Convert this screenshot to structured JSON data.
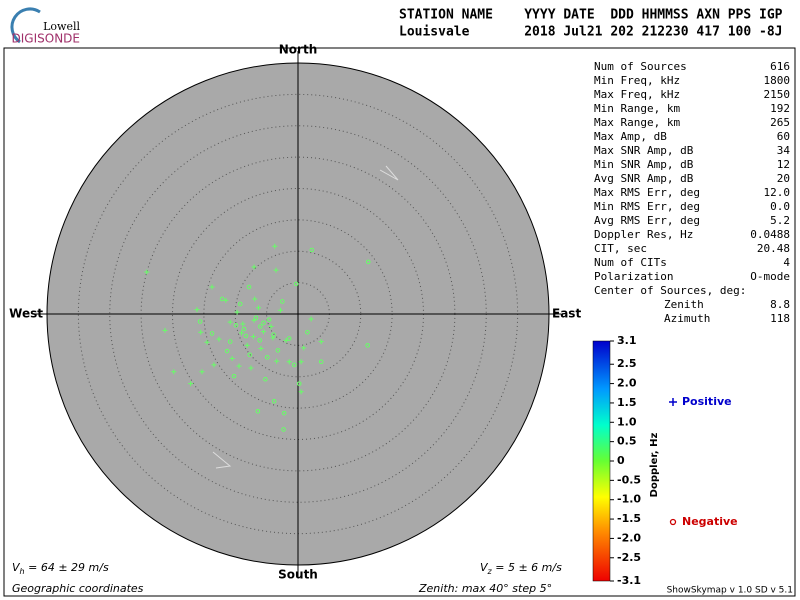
{
  "logo": {
    "top": "Lowell",
    "bottom": "DIGISONDE"
  },
  "header": {
    "line1": "STATION NAME    YYYY DATE  DDD HHMMSS AXN PPS IGP",
    "line2": "Louisvale       2018 Jul21 202 212230 417 100 -8J"
  },
  "stats": {
    "rows": [
      [
        "Num of Sources",
        "616"
      ],
      [
        "Min Freq, kHz",
        "1800"
      ],
      [
        "Max Freq, kHz",
        "2150"
      ],
      [
        "Min Range, km",
        "192"
      ],
      [
        "Max Range, km",
        "265"
      ],
      [
        "Max Amp, dB",
        "60"
      ],
      [
        "Max SNR Amp, dB",
        "34"
      ],
      [
        "Min SNR Amp, dB",
        "12"
      ],
      [
        "Avg SNR Amp, dB",
        "20"
      ],
      [
        "Max RMS Err, deg",
        "12.0"
      ],
      [
        "Min RMS Err, deg",
        "0.0"
      ],
      [
        "Avg RMS Err, deg",
        "5.2"
      ],
      [
        "Doppler Res, Hz",
        "0.0488"
      ],
      [
        "CIT, sec",
        "20.48"
      ],
      [
        "Num of CITs",
        "4"
      ],
      [
        "Polarization",
        "O-mode"
      ]
    ],
    "center": {
      "title": "Center of Sources, deg:",
      "rows": [
        [
          "Zenith",
          "8.8"
        ],
        [
          "Azimuth",
          "118"
        ]
      ]
    }
  },
  "footer": {
    "vh": {
      "symbol": "V",
      "subscript": "h",
      "text": " = 64 ± 29 m/s"
    },
    "vz": {
      "symbol": "V",
      "subscript": "z",
      "text": " = 5 ± 6 m/s"
    },
    "coords": "Geographic coordinates",
    "zenith": "Zenith: max 40°  step 5°",
    "version": "ShowSkymap v 1.0  SD v 5.1"
  },
  "chart_data": {
    "type": "polar-scatter",
    "directions": {
      "north": "North",
      "south": "South",
      "east": "East",
      "west": "West"
    },
    "rlim": [
      0,
      40
    ],
    "rticks": [
      5,
      10,
      15,
      20,
      25,
      30,
      35,
      40
    ],
    "series": [
      {
        "name": "Positive",
        "marker": "plus",
        "color": "#66ff66",
        "legend_color": "#0000cc",
        "x": [
          -24.1,
          -3.7,
          -7,
          -3.5,
          -13.7,
          -21.2,
          -15.5,
          -19.8,
          -15.3,
          -13.4,
          -9.4,
          -3.4,
          -1.4,
          0.5,
          -7.1,
          -8.8,
          -10.8,
          -12.6,
          -5.9,
          -4.3,
          -2.8,
          -6.3,
          -9.7,
          -11.5,
          -14.5,
          -16.1,
          -17.1,
          -6.9,
          0.9,
          2.1,
          3.7,
          -1.9,
          -8.1,
          -7.5,
          -10.5,
          0.5,
          -5.5,
          -9.0,
          -7.0,
          -4.0
        ],
        "y": [
          6.7,
          10.8,
          7.5,
          7,
          4.3,
          -2.6,
          -2.9,
          -9.2,
          -9.2,
          -8.1,
          -8.3,
          -7.5,
          -7.6,
          -7.6,
          -3.6,
          -1.6,
          -1.3,
          -4.0,
          -5.5,
          -2.0,
          0.6,
          1.0,
          0.3,
          2.2,
          -4.5,
          0.7,
          -11.1,
          2.4,
          -5.4,
          -0.8,
          -4.4,
          -4.2,
          -5.0,
          -8.6,
          -7.1,
          -12.4,
          -2.8,
          -3.0,
          -1.0,
          -3.8
        ]
      },
      {
        "name": "Negative",
        "marker": "circle",
        "color": "#66ff66",
        "legend_color": "#cc0000",
        "x": [
          2.2,
          11.2,
          -12.1,
          -9.2,
          -6.7,
          -8.3,
          -11.3,
          -6.1,
          -3.9,
          -1.4,
          1.5,
          -0.6,
          -5.2,
          -2.2,
          -2.3,
          -6.4,
          -3.8,
          0.2,
          3.7,
          11.1,
          -13.7,
          -15.6,
          -10.2,
          -7.7,
          -4.6,
          -2.5,
          -0.3,
          -7.8,
          -9.9,
          -4.9,
          -8.6,
          -6.0,
          -10.8,
          -5.5,
          -3.2
        ],
        "y": [
          10.2,
          8.3,
          2.4,
          1.6,
          -0.6,
          -3.5,
          -5.9,
          -4.2,
          -3.3,
          -3.9,
          -2.9,
          -8.1,
          -10.4,
          -15.8,
          -18.4,
          -15.5,
          -13.9,
          -11.1,
          -7.6,
          -5.0,
          -3.1,
          -1.2,
          -9.9,
          -6.5,
          -0.9,
          2.0,
          4.8,
          4.3,
          -1.8,
          -6.9,
          -2.4,
          -2.0,
          -4.4,
          -1.4,
          -5.8
        ]
      }
    ],
    "colorbar": {
      "label": "Doppler, Hz",
      "ylim": [
        -3.1,
        3.1
      ],
      "yticks": [
        3.1,
        2.5,
        {
          "value": 2,
          "label": "2.0"
        },
        1.5,
        {
          "value": 1,
          "label": "1.0"
        },
        0.5,
        0,
        -0.5,
        {
          "value": -1,
          "label": "-1.0"
        },
        -1.5,
        {
          "value": -2,
          "label": "-2.0"
        },
        -2.5,
        -3.1
      ]
    }
  }
}
